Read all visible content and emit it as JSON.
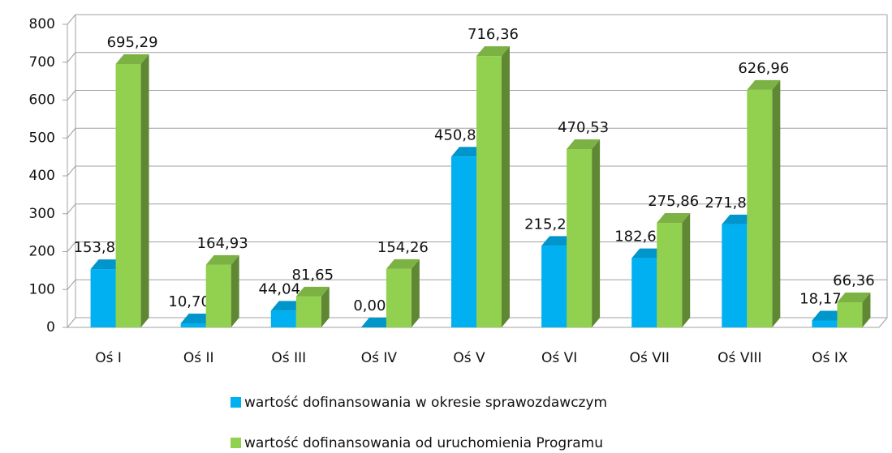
{
  "chart_data": {
    "type": "bar3d",
    "categories": [
      "Oś I",
      "Oś II",
      "Oś III",
      "Oś IV",
      "Oś V",
      "Oś VI",
      "Oś VII",
      "Oś VIII",
      "Oś IX"
    ],
    "series": [
      {
        "name": "wartość dofinansowania w okresie sprawozdawczym",
        "color": "#00b0f0",
        "values": [
          153.87,
          10.7,
          44.04,
          0.0,
          450.8,
          215.28,
          182.65,
          271.84,
          18.17
        ],
        "value_labels": [
          "153,87",
          "10,70",
          "44,04",
          "0,00",
          "450,80",
          "215,28",
          "182,65",
          "271,84",
          "18,17"
        ]
      },
      {
        "name": "wartość dofinansowania od uruchomienia Programu",
        "color": "#92d050",
        "values": [
          695.29,
          164.93,
          81.65,
          154.26,
          716.36,
          470.53,
          275.86,
          626.96,
          66.36
        ],
        "value_labels": [
          "695,29",
          "164,93",
          "81,65",
          "154,26",
          "716,36",
          "470,53",
          "275,86",
          "626,96",
          "66,36"
        ]
      }
    ],
    "ylim": [
      0,
      800
    ],
    "yticks": [
      0,
      100,
      200,
      300,
      400,
      500,
      600,
      700,
      800
    ],
    "grid": true,
    "legend": "bottom"
  }
}
